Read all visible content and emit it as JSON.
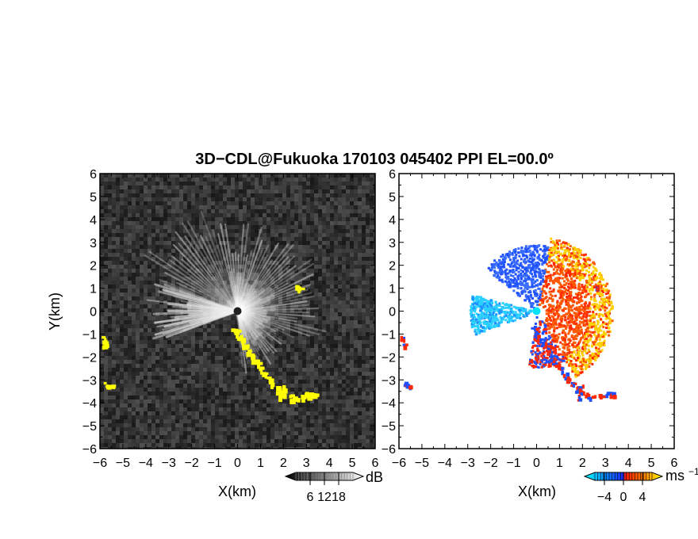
{
  "figure": {
    "title": "3D−CDL@Fukuoka 170103 045402 PPI EL=00.0º"
  },
  "chart_data": [
    {
      "type": "heatmap",
      "panel": "left",
      "xlabel": "X(km)",
      "ylabel": "Y(km)",
      "xlim": [
        -6,
        6
      ],
      "ylim": [
        -6,
        6
      ],
      "xticks": [
        "−6",
        "−5",
        "−4",
        "−3",
        "−2",
        "−1",
        "0",
        "1",
        "2",
        "3",
        "4",
        "5",
        "6"
      ],
      "yticks": [
        "6",
        "5",
        "4",
        "3",
        "2",
        "1",
        "0",
        "−1",
        "−2",
        "−3",
        "−4",
        "−5",
        "−6"
      ],
      "colorbar": {
        "unit": "dB",
        "ticks": [
          "6",
          "12",
          "18"
        ],
        "values": [
          6,
          12,
          18
        ]
      },
      "background_color": "#2a2a2a",
      "highlight_color": "#ffff00",
      "grid": false
    },
    {
      "type": "heatmap",
      "panel": "right",
      "xlabel": "X(km)",
      "ylabel": "",
      "xlim": [
        -6,
        6
      ],
      "ylim": [
        -6,
        6
      ],
      "xticks": [
        "−6",
        "−5",
        "−4",
        "−3",
        "−2",
        "−1",
        "0",
        "1",
        "2",
        "3",
        "4",
        "5",
        "6"
      ],
      "yticks": [
        "6",
        "5",
        "4",
        "3",
        "2",
        "1",
        "0",
        "−1",
        "−2",
        "−3",
        "−4",
        "−5",
        "−6"
      ],
      "colorbar": {
        "unit": "ms",
        "unit_exponent": "−1",
        "ticks": [
          "−4",
          "0",
          "4"
        ],
        "values": [
          -4,
          0,
          4
        ]
      },
      "colors": {
        "negative": "#1e50ff",
        "negative_light": "#2ad0ff",
        "positive": "#ff2800",
        "positive_light": "#ffd000"
      },
      "grid": false
    }
  ]
}
